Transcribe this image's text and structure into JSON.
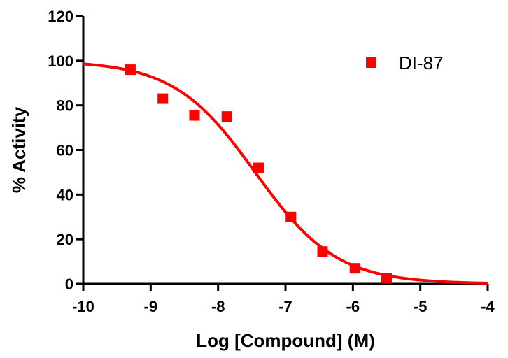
{
  "chart_data": {
    "type": "scatter",
    "title": "",
    "xlabel": "Log [Compound] (M)",
    "ylabel": "% Activity",
    "xlim": [
      -10,
      -4
    ],
    "ylim": [
      0,
      120
    ],
    "x_ticks": [
      -10,
      -9,
      -8,
      -7,
      -6,
      -5,
      -4
    ],
    "y_ticks": [
      0,
      20,
      40,
      60,
      80,
      100,
      120
    ],
    "grid": false,
    "legend_position": "top-right",
    "series": [
      {
        "name": "DI-87",
        "color": "#ff0000",
        "marker": "square",
        "x": [
          -9.3,
          -8.82,
          -8.35,
          -7.87,
          -7.4,
          -6.92,
          -6.45,
          -5.97,
          -5.5
        ],
        "y": [
          96,
          83,
          75.5,
          75,
          52,
          30,
          14.5,
          7,
          2.5
        ]
      }
    ],
    "fit_curve": {
      "model": "sigmoidal dose-response",
      "top": 100,
      "bottom": 0,
      "log_ic50": -7.45,
      "hill_slope": -0.72,
      "color": "#ff0000"
    }
  }
}
